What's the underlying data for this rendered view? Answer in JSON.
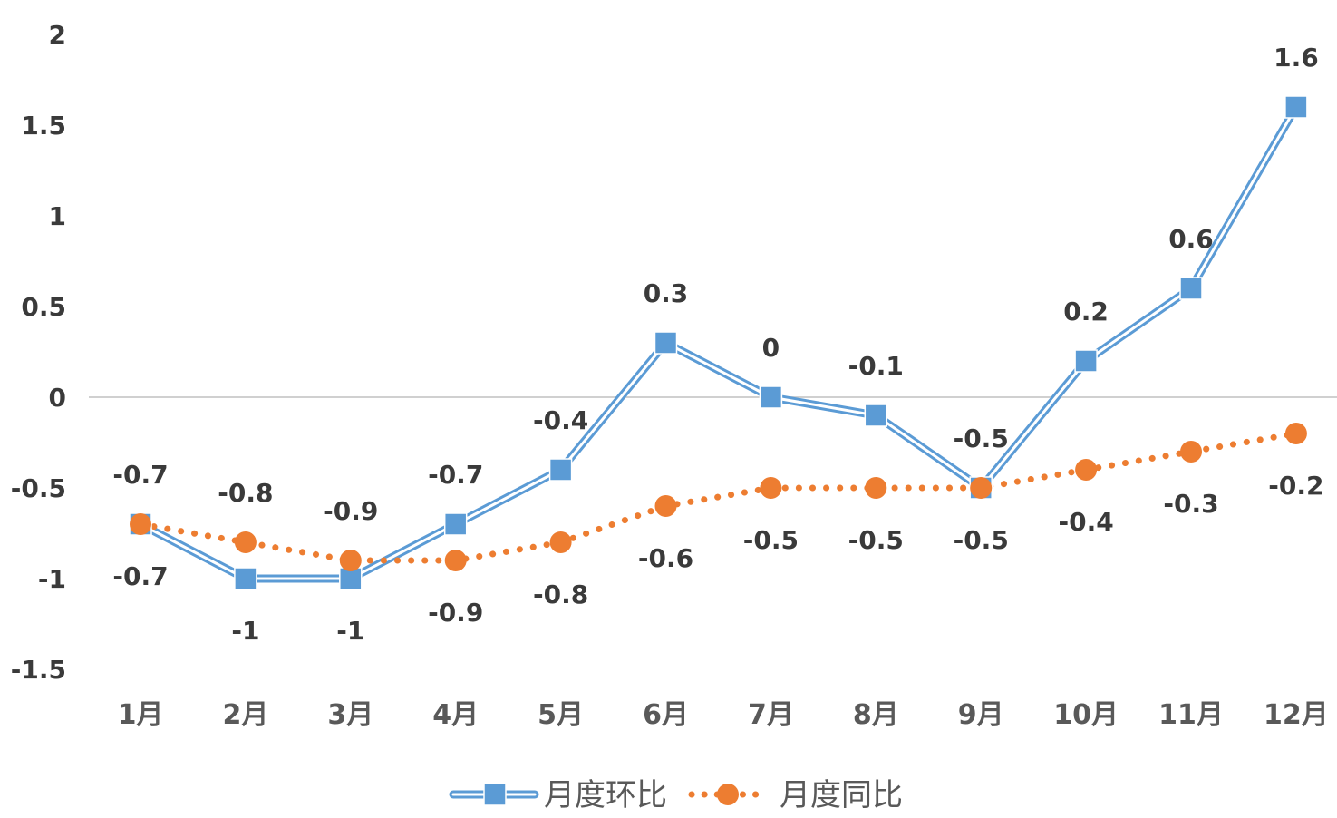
{
  "chart_data": {
    "type": "line",
    "title": "",
    "xlabel": "",
    "ylabel": "",
    "categories": [
      "1月",
      "2月",
      "3月",
      "4月",
      "5月",
      "6月",
      "7月",
      "8月",
      "9月",
      "10月",
      "11月",
      "12月"
    ],
    "ylim": [
      -1.5,
      2
    ],
    "yticks": [
      "2",
      "1.5",
      "1",
      "0.5",
      "0",
      "-0.5",
      "-1",
      "-1.5"
    ],
    "ytick_values": [
      2,
      1.5,
      1,
      0.5,
      0,
      -0.5,
      -1,
      -1.5
    ],
    "grid": false,
    "zero_line": true,
    "legend_position": "bottom",
    "series": [
      {
        "name": "月度环比",
        "color": "#5b9bd5",
        "marker": "square",
        "line_style": "double",
        "values": [
          -0.7,
          -1,
          -1,
          -0.7,
          -0.4,
          0.3,
          0,
          -0.1,
          -0.5,
          0.2,
          0.6,
          1.6
        ],
        "labels": [
          "-0.7",
          "-1",
          "-1",
          "-0.7",
          "-0.4",
          "0.3",
          "0",
          "-0.1",
          "-0.5",
          "0.2",
          "0.6",
          "1.6"
        ]
      },
      {
        "name": "月度同比",
        "color": "#ed7d31",
        "marker": "circle",
        "line_style": "dotted",
        "values": [
          -0.7,
          -0.8,
          -0.9,
          -0.9,
          -0.8,
          -0.6,
          -0.5,
          -0.5,
          -0.5,
          -0.4,
          -0.3,
          -0.2
        ],
        "labels": [
          "-0.7",
          "-0.8",
          "-0.9",
          "-0.9",
          "-0.8",
          "-0.6",
          "-0.5",
          "-0.5",
          "-0.5",
          "-0.4",
          "-0.3",
          "-0.2"
        ]
      }
    ]
  }
}
